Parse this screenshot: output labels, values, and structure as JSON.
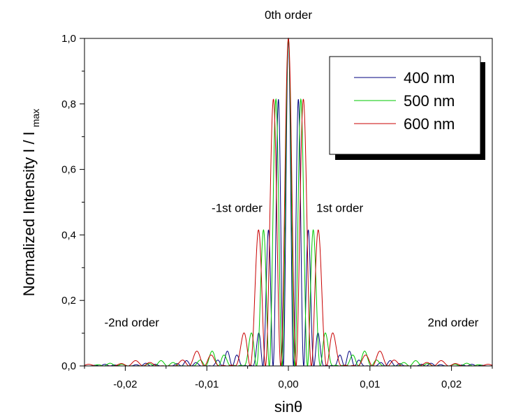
{
  "chart_data": {
    "type": "line",
    "title": "",
    "xlabel": "sinθ",
    "ylabel_main": "Normalized Intensity I / I",
    "ylabel_sub": "max",
    "xlim": [
      -0.025,
      0.025
    ],
    "ylim": [
      0,
      1.0
    ],
    "x_ticks": [
      -0.02,
      -0.01,
      0.0,
      0.01,
      0.02
    ],
    "x_tick_labels": [
      "-0,02",
      "-0,01",
      "0,00",
      "0,01",
      "0,02"
    ],
    "y_ticks": [
      0.0,
      0.2,
      0.4,
      0.6,
      0.8,
      1.0
    ],
    "y_tick_labels": [
      "0,0",
      "0,2",
      "0,4",
      "0,6",
      "0,8",
      "1,0"
    ],
    "grid": false,
    "legend_position": "top-right",
    "series": [
      {
        "name": "400 nm",
        "color": "#00007f",
        "wavelength_nm": 400
      },
      {
        "name": "500 nm",
        "color": "#00c800",
        "wavelength_nm": 500
      },
      {
        "name": "600 nm",
        "color": "#c80000",
        "wavelength_nm": 600
      }
    ],
    "annotations": [
      {
        "text": "0th order",
        "x": 0.0,
        "y": 1.06
      },
      {
        "text": "-1st order",
        "x": -0.0063,
        "y": 0.47
      },
      {
        "text": "1st order",
        "x": 0.0063,
        "y": 0.47
      },
      {
        "text": "-2nd order",
        "x": -0.0192,
        "y": 0.12
      },
      {
        "text": "2nd order",
        "x": 0.0202,
        "y": 0.12
      }
    ]
  }
}
